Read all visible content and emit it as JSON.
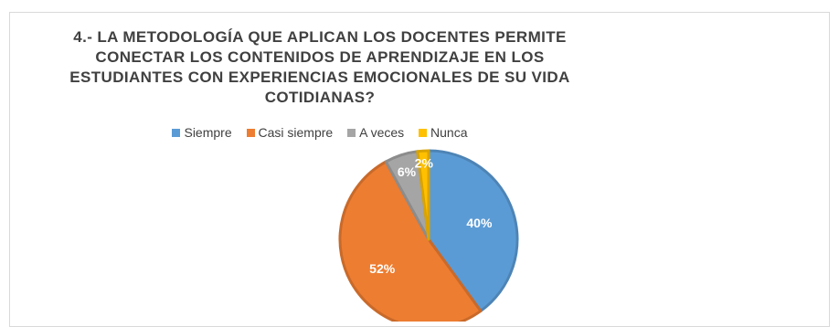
{
  "chart_data": {
    "type": "pie",
    "title_lines": [
      "4.- LA METODOLOGÍA QUE APLICAN LOS DOCENTES PERMITE",
      "CONECTAR LOS CONTENIDOS DE APRENDIZAJE EN LOS",
      "ESTUDIANTES CON EXPERIENCIAS EMOCIONALES DE SU VIDA",
      "COTIDIANAS?"
    ],
    "categories": [
      "Siempre",
      "Casi siempre",
      "A veces",
      "Nunca"
    ],
    "values": [
      40,
      52,
      6,
      2
    ],
    "data_labels": [
      "40%",
      "52%",
      "6%",
      "2%"
    ],
    "colors": [
      "#5b9bd5",
      "#ed7d31",
      "#a5a5a5",
      "#ffc000"
    ],
    "legend_position": "top"
  }
}
